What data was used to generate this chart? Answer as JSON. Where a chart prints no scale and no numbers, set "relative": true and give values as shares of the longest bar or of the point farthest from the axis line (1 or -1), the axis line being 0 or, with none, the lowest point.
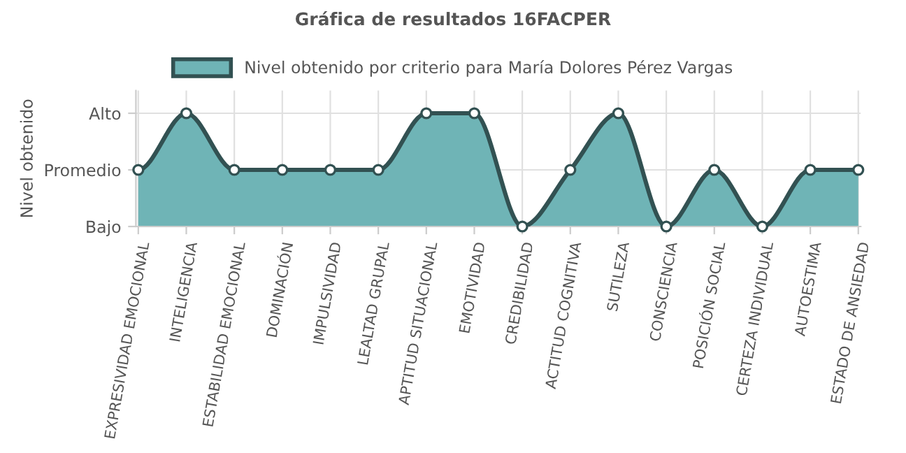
{
  "chart_data": {
    "type": "area",
    "title": "Gráfica de resultados 16FACPER",
    "ylabel": "Nivel obtenido",
    "categories": [
      "EXPRESIVIDAD EMOCIONAL",
      "INTELIGENCIA",
      "ESTABILIDAD EMOCIONAL",
      "DOMINACIÓN",
      "IMPULSIVIDAD",
      "LEALTAD GRUPAL",
      "APTITUD SITUACIONAL",
      "EMOTIVIDAD",
      "CREDIBILIDAD",
      "ACTITUD COGNITIVA",
      "SUTILEZA",
      "CONSCIENCIA",
      "POSICIÓN SOCIAL",
      "CERTEZA INDIVIDUAL",
      "AUTOESTIMA",
      "ESTADO DE ANSIEDAD"
    ],
    "series": [
      {
        "name": "Nivel obtenido por criterio para María Dolores Pérez Vargas",
        "color": "#6fb4b6",
        "values": [
          0.5,
          1,
          0.5,
          0.5,
          0.5,
          0.5,
          1,
          1,
          0,
          0.5,
          1,
          0,
          0.5,
          0,
          0.5,
          0.5
        ]
      }
    ],
    "relative": true,
    "y_categories": [
      "Alto",
      "Promedio",
      "Bajo"
    ],
    "grid": true,
    "legend": "top",
    "marker": "circle"
  }
}
